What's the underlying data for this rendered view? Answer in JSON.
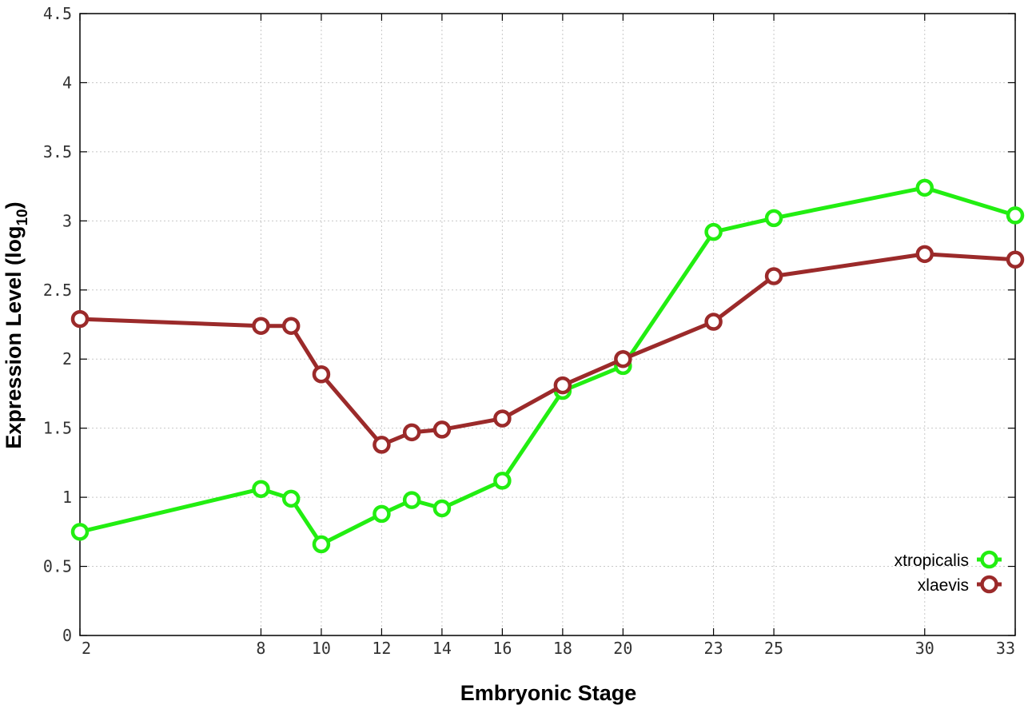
{
  "chart_data": {
    "type": "line",
    "xlabel": "Embryonic Stage",
    "ylabel_main": "Expression Level (log",
    "ylabel_sub": "10",
    "ylabel_close": ")",
    "x_ticks": [
      2,
      8,
      10,
      12,
      14,
      16,
      18,
      20,
      23,
      25,
      30,
      33
    ],
    "x_tick_labels": [
      "2",
      "8",
      "10",
      "12",
      "14",
      "16",
      "18",
      "20",
      "23",
      "25",
      "30",
      "33"
    ],
    "xlim": [
      2,
      33
    ],
    "y_ticks": [
      0,
      0.5,
      1,
      1.5,
      2,
      2.5,
      3,
      3.5,
      4,
      4.5
    ],
    "y_tick_labels": [
      "0",
      "0.5",
      "1",
      "1.5",
      "2",
      "2.5",
      "3",
      "3.5",
      "4",
      "4.5"
    ],
    "ylim": [
      0,
      4.5
    ],
    "grid": true,
    "legend_position": "bottom-right",
    "x": [
      2,
      8,
      9,
      10,
      12,
      13,
      14,
      16,
      18,
      20,
      23,
      25,
      30,
      33
    ],
    "series": [
      {
        "name": "xtropicalis",
        "color": "#22ee11",
        "values": [
          0.75,
          1.06,
          0.99,
          0.66,
          0.88,
          0.98,
          0.92,
          1.12,
          1.77,
          1.95,
          2.92,
          3.02,
          3.24,
          3.04
        ]
      },
      {
        "name": "xlaevis",
        "color": "#9b2a2a",
        "values": [
          2.29,
          2.24,
          2.24,
          1.89,
          1.38,
          1.47,
          1.49,
          1.57,
          1.81,
          2.0,
          2.27,
          2.6,
          2.76,
          2.72
        ]
      }
    ]
  }
}
